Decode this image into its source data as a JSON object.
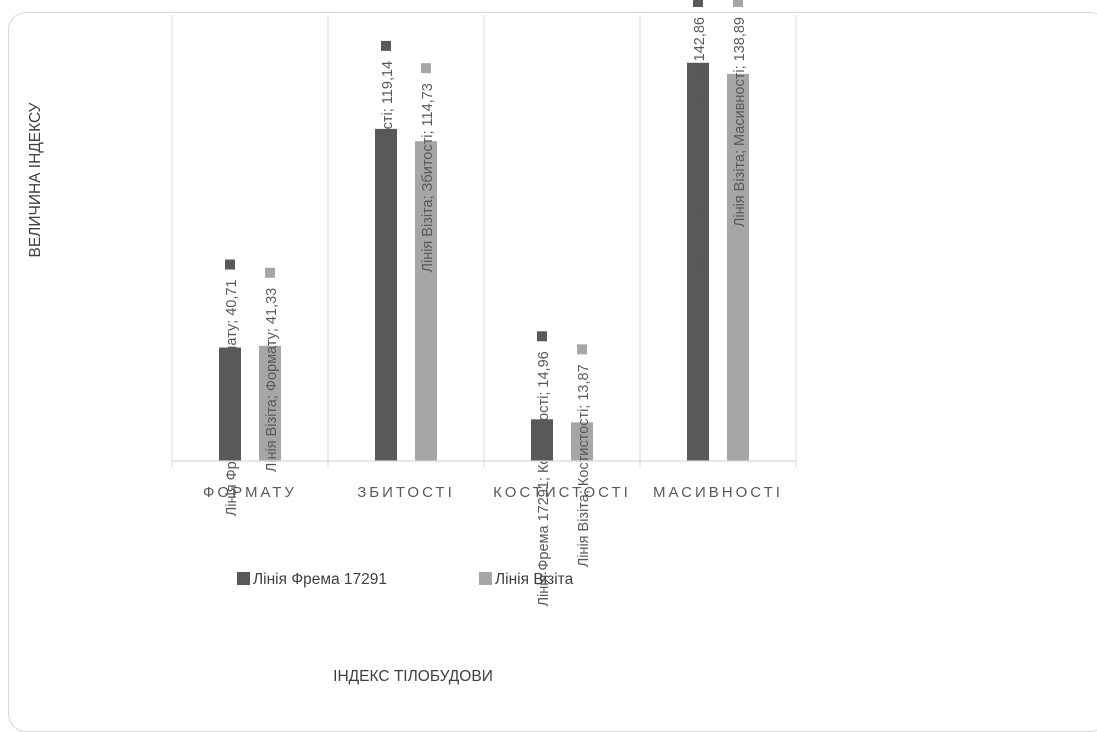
{
  "chart_data": {
    "type": "bar",
    "categories": [
      "ФОРМАТУ",
      "ЗБИТОСТІ",
      "КОСТИСТОСТІ",
      "МАСИВНОСТІ"
    ],
    "series": [
      {
        "name": "Лінія Фрема 17291",
        "values": [
          40.71,
          119.14,
          14.96,
          142.86
        ],
        "color": "#595959"
      },
      {
        "name": "Лінія Візіта",
        "values": [
          41.33,
          114.73,
          13.87,
          138.89
        ],
        "color": "#a6a6a6"
      }
    ],
    "data_labels": [
      [
        "Лінія Фрема 17291; Формату; 40,71",
        "Лінія Фрема 17291; Збитості; 119,14",
        "Лінія Фрема 17291; Костистості; 14,96",
        "Лінія Фрема 17291; Масивності; 142,86"
      ],
      [
        "Лінія Візіта; Формату; 41,33",
        "Лінія Візіта; Збитості; 114,73",
        "Лінія Візіта; Костистості; 13,87",
        "Лінія Візіта; Масивності; 138,89"
      ]
    ],
    "ylabel": "ВЕЛИЧИНА ІНДЕКСУ",
    "xlabel": "ІНДЕКС ТІЛОБУДОВИ",
    "ylim": [
      0,
      160
    ],
    "grid": "vertical category separators",
    "legend": "bottom"
  }
}
